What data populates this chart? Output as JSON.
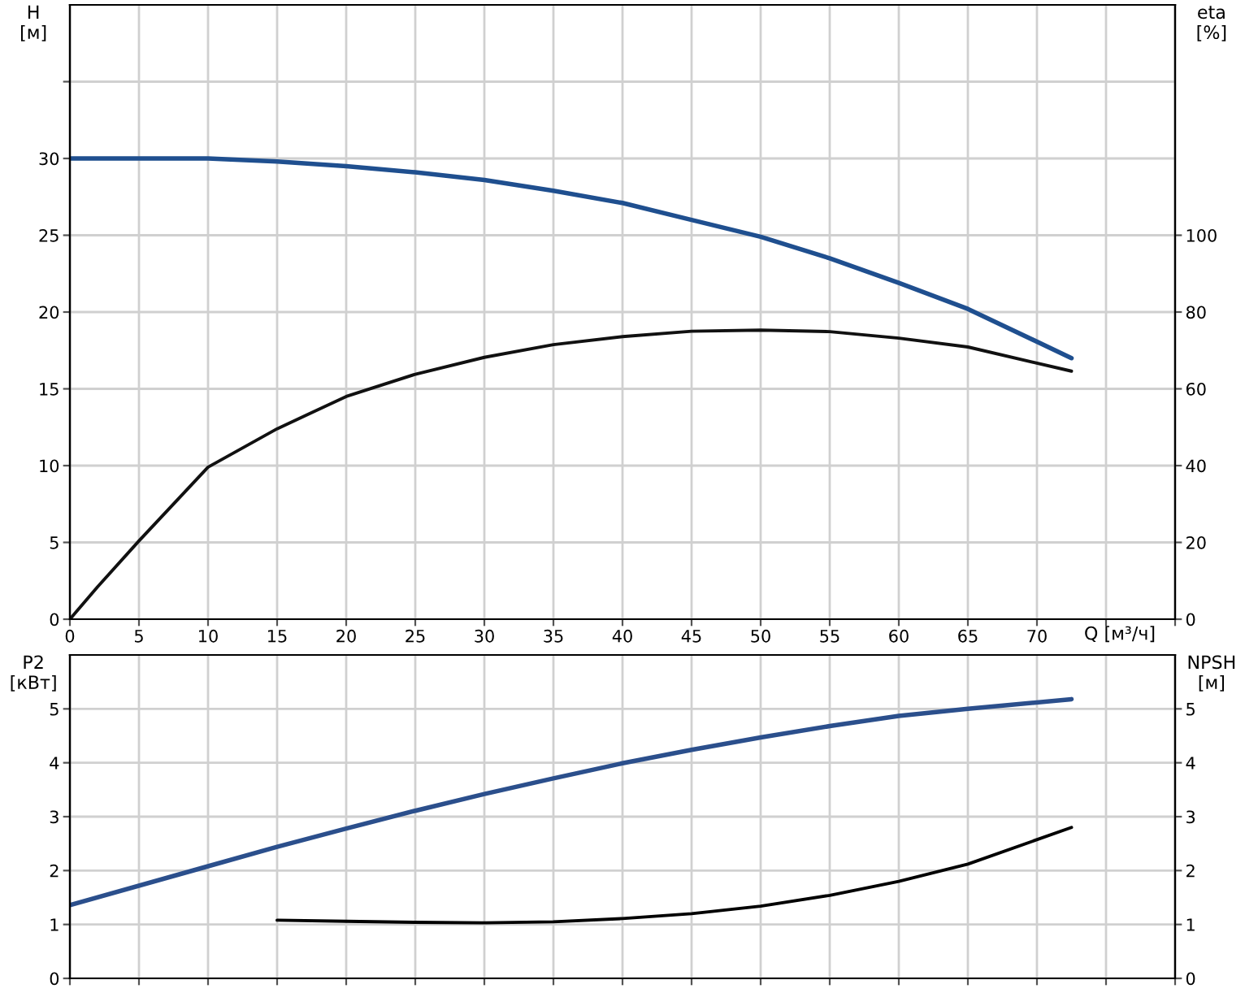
{
  "chart_data": [
    {
      "type": "line",
      "ylabel": "H\n[м]",
      "y2label": "eta\n[%]",
      "xlabel": "Q [м³/ч]",
      "x": [
        0,
        2,
        5,
        10,
        15,
        20,
        25,
        30,
        35,
        40,
        45,
        50,
        55,
        60,
        65,
        72.5
      ],
      "series": [
        {
          "color": "#1f4f8f",
          "values": [
            30,
            30,
            30,
            30,
            29.8,
            29.5,
            29.1,
            28.6,
            27.9,
            27.1,
            26.0,
            24.9,
            23.5,
            21.9,
            20.2,
            17.0
          ]
        },
        {
          "color": "#111111",
          "axis": "y2",
          "values": [
            0,
            8.4,
            20.4,
            39.6,
            49.6,
            58,
            63.8,
            68.2,
            71.5,
            73.6,
            75.0,
            75.3,
            74.9,
            73.2,
            70.9,
            64.6
          ]
        }
      ],
      "xlim": [
        0,
        80
      ],
      "xticks": [
        0,
        5,
        10,
        15,
        20,
        25,
        30,
        35,
        40,
        45,
        50,
        55,
        60,
        65,
        70,
        {
          "value": 75,
          "label": null
        },
        {
          "value": 80,
          "label": null
        }
      ],
      "ylim": [
        0,
        40
      ],
      "yticks": [
        0,
        5,
        10,
        15,
        20,
        25,
        30,
        {
          "value": 35,
          "label": null
        }
      ],
      "y2lim": [
        0,
        160
      ],
      "y2ticks": [
        0,
        20,
        40,
        60,
        80,
        100
      ],
      "grid": true,
      "legend": false
    },
    {
      "type": "line",
      "ylabel": "P2\n[кВт]",
      "y2label": "NPSH\n[м]",
      "x": [
        0,
        10,
        15,
        20,
        25,
        30,
        35,
        40,
        45,
        50,
        55,
        60,
        65,
        72.5
      ],
      "series": [
        {
          "color": "#2b4f8c",
          "values": [
            1.36,
            2.08,
            2.44,
            2.78,
            3.11,
            3.42,
            3.71,
            3.99,
            4.24,
            4.47,
            4.68,
            4.87,
            5.0,
            5.18
          ]
        },
        {
          "color": "#000000",
          "axis": "y2",
          "x": [
            15,
            20,
            25,
            30,
            35,
            40,
            45,
            50,
            55,
            60,
            65,
            72.5
          ],
          "values": [
            1.08,
            1.06,
            1.04,
            1.03,
            1.05,
            1.11,
            1.2,
            1.34,
            1.54,
            1.8,
            2.12,
            2.8
          ]
        }
      ],
      "xlim": [
        0,
        80
      ],
      "xticks": [
        0,
        5,
        10,
        15,
        20,
        25,
        30,
        35,
        40,
        45,
        50,
        55,
        60,
        65,
        70,
        75,
        80
      ],
      "ylim": [
        0,
        6
      ],
      "yticks": [
        0,
        1,
        2,
        3,
        4,
        5
      ],
      "y2lim": [
        0,
        6
      ],
      "y2ticks": [
        0,
        1,
        2,
        3,
        4,
        5
      ],
      "tick_labels": "y",
      "grid": true,
      "legend": false
    }
  ]
}
